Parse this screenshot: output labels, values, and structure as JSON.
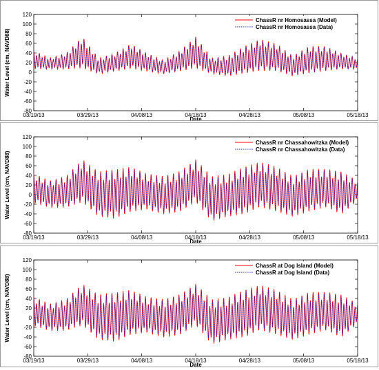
{
  "colors": {
    "model": "#ff0000",
    "data": "#2222cc",
    "axis": "#000000"
  },
  "chart_data": [
    {
      "type": "line",
      "xlabel": "Date",
      "ylabel": "Water Level (cm, NAVD88)",
      "ylim": [
        -80,
        120
      ],
      "yticks": [
        120,
        100,
        80,
        60,
        40,
        20,
        0,
        -20,
        -40,
        -60,
        -80
      ],
      "xticks": [
        "03/19/13",
        "03/29/13",
        "04/08/13",
        "04/18/13",
        "04/28/13",
        "05/08/13",
        "05/18/13"
      ],
      "xlim_days": [
        0,
        60
      ],
      "series": [
        {
          "name": "ChassR nr Homosassa (Model)",
          "style": "solid"
        },
        {
          "name": "ChassR nr Homosassa (Data)",
          "style": "dashed"
        }
      ],
      "envelope": {
        "note": "approximate daily high/low",
        "days": [
          0,
          3,
          6,
          9,
          12,
          15,
          18,
          21,
          24,
          27,
          30,
          33,
          36,
          39,
          42,
          45,
          48,
          51,
          54,
          57,
          60
        ],
        "high": [
          45,
          30,
          40,
          75,
          30,
          40,
          60,
          40,
          25,
          45,
          75,
          30,
          35,
          55,
          70,
          60,
          35,
          55,
          55,
          40,
          30
        ],
        "low": [
          5,
          5,
          5,
          5,
          -5,
          0,
          5,
          0,
          -5,
          0,
          5,
          -5,
          -10,
          -5,
          0,
          0,
          -10,
          -5,
          0,
          5,
          5
        ]
      }
    },
    {
      "type": "line",
      "xlabel": "Date",
      "ylabel": "Water Level (cm, NAVD88)",
      "ylim": [
        -80,
        120
      ],
      "yticks": [
        120,
        100,
        80,
        60,
        40,
        20,
        0,
        -20,
        -40,
        -60,
        -80
      ],
      "xticks": [
        "03/19/13",
        "03/29/13",
        "04/08/13",
        "04/18/13",
        "04/28/13",
        "05/08/13",
        "05/18/13"
      ],
      "xlim_days": [
        0,
        60
      ],
      "series": [
        {
          "name": "ChassR nr Chassahowitzka (Model)",
          "style": "solid"
        },
        {
          "name": "ChassR nr Chassahowitzka (Data)",
          "style": "dashed"
        }
      ],
      "envelope": {
        "note": "approximate daily high/low",
        "days": [
          0,
          3,
          6,
          9,
          12,
          15,
          18,
          21,
          24,
          27,
          30,
          33,
          36,
          39,
          42,
          45,
          48,
          51,
          54,
          57,
          60
        ],
        "high": [
          45,
          30,
          40,
          75,
          50,
          55,
          60,
          45,
          40,
          50,
          75,
          40,
          45,
          60,
          70,
          60,
          40,
          55,
          55,
          50,
          30
        ],
        "low": [
          -20,
          -30,
          -30,
          -20,
          -50,
          -55,
          -40,
          -35,
          -45,
          -40,
          -20,
          -60,
          -50,
          -45,
          -30,
          -40,
          -50,
          -40,
          -30,
          -45,
          -15
        ]
      }
    },
    {
      "type": "line",
      "xlabel": "Date",
      "ylabel": "Water Level (cm, NAVD88)",
      "ylim": [
        -80,
        120
      ],
      "yticks": [
        120,
        100,
        80,
        60,
        40,
        20,
        0,
        -20,
        -40,
        -60,
        -80
      ],
      "xticks": [
        "03/19/13",
        "03/29/13",
        "04/08/13",
        "04/18/13",
        "04/28/13",
        "05/08/13",
        "05/18/13"
      ],
      "xlim_days": [
        0,
        60
      ],
      "series": [
        {
          "name": "ChassR at Dog Island (Model)",
          "style": "solid"
        },
        {
          "name": "ChassR at Dog Island (Data)",
          "style": "dashed"
        }
      ],
      "envelope": {
        "note": "approximate daily high/low",
        "days": [
          0,
          3,
          6,
          9,
          12,
          15,
          18,
          21,
          24,
          27,
          30,
          33,
          36,
          39,
          42,
          45,
          48,
          51,
          54,
          57,
          60
        ],
        "high": [
          45,
          30,
          40,
          72,
          50,
          55,
          60,
          45,
          40,
          50,
          72,
          40,
          45,
          60,
          70,
          60,
          40,
          55,
          55,
          50,
          30
        ],
        "low": [
          -20,
          -30,
          -30,
          -20,
          -50,
          -55,
          -40,
          -35,
          -45,
          -40,
          -20,
          -60,
          -50,
          -45,
          -30,
          -40,
          -50,
          -40,
          -30,
          -45,
          -15
        ]
      }
    }
  ]
}
